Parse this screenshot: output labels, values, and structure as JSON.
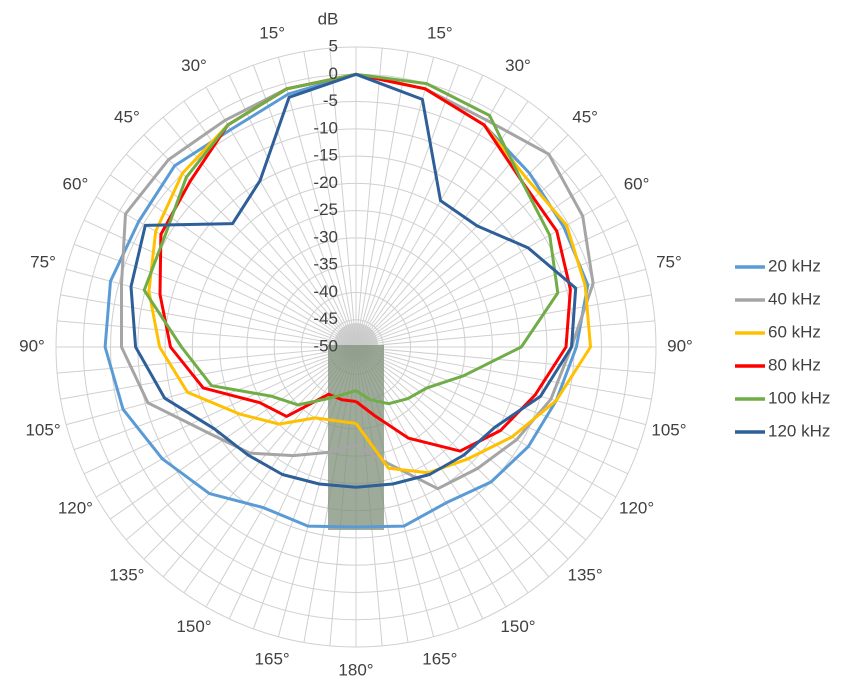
{
  "chart_data": {
    "type": "polar",
    "r_title": "dB",
    "rlim": [
      -50,
      5
    ],
    "rticks": [
      5,
      0,
      -5,
      -10,
      -15,
      -20,
      -25,
      -30,
      -35,
      -40,
      -45,
      -50
    ],
    "thetaticks": [
      {
        "value": -165,
        "label": "165°"
      },
      {
        "value": -150,
        "label": "150°"
      },
      {
        "value": -135,
        "label": "135°"
      },
      {
        "value": -120,
        "label": "120°"
      },
      {
        "value": -105,
        "label": "105°"
      },
      {
        "value": -90,
        "label": "90°"
      },
      {
        "value": -75,
        "label": "75°"
      },
      {
        "value": -60,
        "label": "60°"
      },
      {
        "value": -45,
        "label": "45°"
      },
      {
        "value": -30,
        "label": "30°"
      },
      {
        "value": -15,
        "label": "15°"
      },
      {
        "value": 15,
        "label": "15°"
      },
      {
        "value": 30,
        "label": "30°"
      },
      {
        "value": 45,
        "label": "45°"
      },
      {
        "value": 60,
        "label": "60°"
      },
      {
        "value": 75,
        "label": "75°"
      },
      {
        "value": 90,
        "label": "90°"
      },
      {
        "value": 105,
        "label": "105°"
      },
      {
        "value": 120,
        "label": "120°"
      },
      {
        "value": 135,
        "label": "135°"
      },
      {
        "value": 150,
        "label": "150°"
      },
      {
        "value": 165,
        "label": "165°"
      },
      {
        "value": 180,
        "label": "180°"
      }
    ],
    "theta_grid": [
      -175,
      -170,
      -165,
      -160,
      -155,
      -150,
      -145,
      -140,
      -135,
      -130,
      -125,
      -120,
      -115,
      -110,
      -105,
      -100,
      -95,
      -90,
      -85,
      -80,
      -75,
      -70,
      -65,
      -60,
      -55,
      -50,
      -45,
      -40,
      -35,
      -30,
      -25,
      -20,
      -15,
      -10,
      -5,
      0,
      5,
      10,
      15,
      20,
      25,
      30,
      35,
      40,
      45,
      50,
      55,
      60,
      65,
      70,
      75,
      80,
      85,
      90,
      95,
      100,
      105,
      110,
      115,
      120,
      125,
      130,
      135,
      140,
      145,
      150,
      155,
      160,
      165,
      170,
      175,
      180
    ],
    "theta": [
      -180,
      -165,
      -150,
      -135,
      -120,
      -105,
      -90,
      -75,
      -60,
      -45,
      -30,
      -15,
      0,
      15,
      30,
      45,
      60,
      75,
      90,
      105,
      120,
      135,
      150,
      165,
      180
    ],
    "grid": true,
    "legend": "right",
    "series": [
      {
        "name": "20 kHz",
        "color": "#5b9bd5",
        "values": [
          -17,
          -16,
          -16,
          -12,
          -9,
          -5.8,
          -4,
          -3.4,
          -4,
          -3,
          -4,
          -2,
          0,
          -1,
          -3,
          -5,
          -6,
          -6,
          -9.6,
          -12,
          -13.5,
          -15,
          -17,
          -16,
          -17
        ]
      },
      {
        "name": "40 kHz",
        "color": "#a5a5a5",
        "values": [
          -32,
          -30,
          -27,
          -22.5,
          -18.6,
          -10.5,
          -7,
          -5.5,
          -1.2,
          -1.4,
          -2,
          -1,
          0,
          -1,
          -2,
          0,
          -2,
          -5,
          -10.5,
          -13,
          -16,
          -18.5,
          -20,
          -28,
          -32
        ]
      },
      {
        "name": "60 kHz",
        "color": "#ffc000",
        "values": [
          -36,
          -36,
          -35,
          -30,
          -25.4,
          -18,
          -14,
          -10.7,
          -7.6,
          -5,
          -3,
          -1,
          0,
          -1,
          -3,
          -6,
          -5.4,
          -6.5,
          -7,
          -12,
          -17,
          -21,
          -23.4,
          -27,
          -36
        ]
      },
      {
        "name": "80 kHz",
        "color": "#ff0000",
        "values": [
          -40,
          -40,
          -40,
          -32,
          -29.6,
          -21,
          -16,
          -12.8,
          -8.7,
          -7,
          -3,
          -1,
          0,
          -1,
          -3,
          -7,
          -7.5,
          -9.3,
          -11.5,
          -16,
          -19.4,
          -23,
          -30.7,
          -37,
          -40
        ]
      },
      {
        "name": "100 kHz",
        "color": "#70ad47",
        "values": [
          -42,
          -41,
          -39,
          -35,
          -32,
          -22.6,
          -18,
          -9.8,
          -9.5,
          -6,
          -3,
          -1,
          0,
          0,
          -1,
          -7,
          -9,
          -11.7,
          -19.7,
          -29.6,
          -35,
          -36.6,
          -38,
          -40,
          -42
        ]
      },
      {
        "name": "120 kHz",
        "color": "#2e5f99",
        "values": [
          -24.3,
          -24,
          -23,
          -22,
          -20,
          -13.7,
          -9.6,
          -7.3,
          -5.4,
          -18,
          -14.8,
          -2.6,
          0,
          -3,
          -19,
          -18.6,
          -13.6,
          -8.3,
          -10.5,
          -15,
          -20.6,
          -22,
          -23,
          -24,
          -24.3
        ]
      }
    ]
  }
}
